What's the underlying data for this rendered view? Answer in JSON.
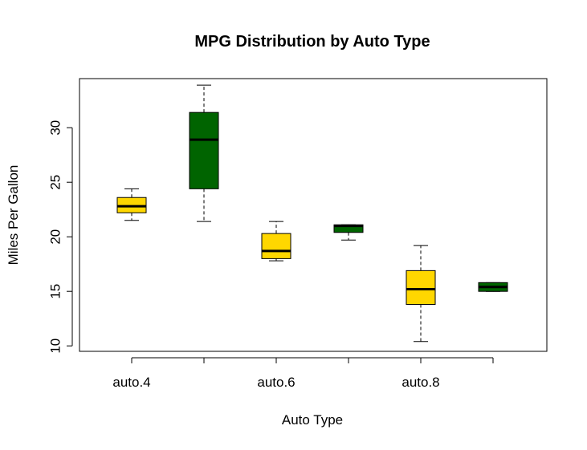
{
  "chart_data": {
    "type": "boxplot",
    "title": "MPG Distribution by Auto Type",
    "xlabel": "Auto Type",
    "ylabel": "Miles Per Gallon",
    "ylim": [
      9.5,
      34.5
    ],
    "yticks": [
      10,
      15,
      20,
      25,
      30
    ],
    "grid": false,
    "legend": "none",
    "categories": [
      "auto.4",
      "",
      "auto.6",
      "",
      "auto.8",
      ""
    ],
    "colors": [
      "#FFD700",
      "#006400",
      "#FFD700",
      "#006400",
      "#FFD700",
      "#006400"
    ],
    "boxes": [
      {
        "min": 21.5,
        "q1": 22.2,
        "median": 22.8,
        "q3": 23.6,
        "max": 24.4
      },
      {
        "min": 21.4,
        "q1": 24.4,
        "median": 28.9,
        "q3": 31.4,
        "max": 33.9
      },
      {
        "min": 17.8,
        "q1": 18.0,
        "median": 18.7,
        "q3": 20.3,
        "max": 21.4
      },
      {
        "min": 19.7,
        "q1": 20.4,
        "median": 21.0,
        "q3": 21.1,
        "max": 21.1
      },
      {
        "min": 10.4,
        "q1": 13.8,
        "median": 15.2,
        "q3": 16.9,
        "max": 19.2
      },
      {
        "min": 15.0,
        "q1": 15.0,
        "median": 15.4,
        "q3": 15.8,
        "max": 15.8
      }
    ]
  }
}
